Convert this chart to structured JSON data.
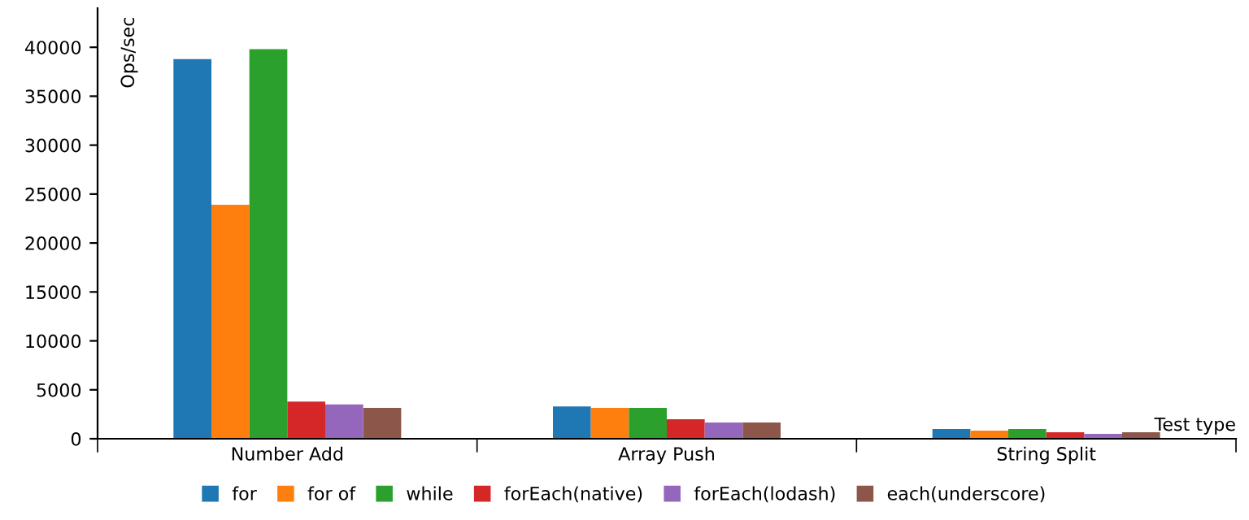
{
  "chart_data": {
    "type": "bar",
    "xlabel": "Test type",
    "ylabel": "Ops/sec",
    "categories": [
      "Number Add",
      "Array Push",
      "String Split"
    ],
    "series": [
      {
        "name": "for",
        "color": "#1f77b4",
        "values": [
          38800,
          3300,
          1000
        ]
      },
      {
        "name": "for of",
        "color": "#ff7f0e",
        "values": [
          23900,
          3150,
          830
        ]
      },
      {
        "name": "while",
        "color": "#2ca02c",
        "values": [
          39800,
          3150,
          1000
        ]
      },
      {
        "name": "forEach(native)",
        "color": "#d62728",
        "values": [
          3800,
          2000,
          660
        ]
      },
      {
        "name": "forEach(lodash)",
        "color": "#9467bd",
        "values": [
          3500,
          1650,
          500
        ]
      },
      {
        "name": "each(underscore)",
        "color": "#8c564b",
        "values": [
          3150,
          1650,
          660
        ]
      }
    ],
    "ylim": [
      0,
      44000
    ],
    "yticks": [
      0,
      5000,
      10000,
      15000,
      20000,
      25000,
      30000,
      35000,
      40000
    ],
    "grid": false,
    "legend": "bottom"
  }
}
